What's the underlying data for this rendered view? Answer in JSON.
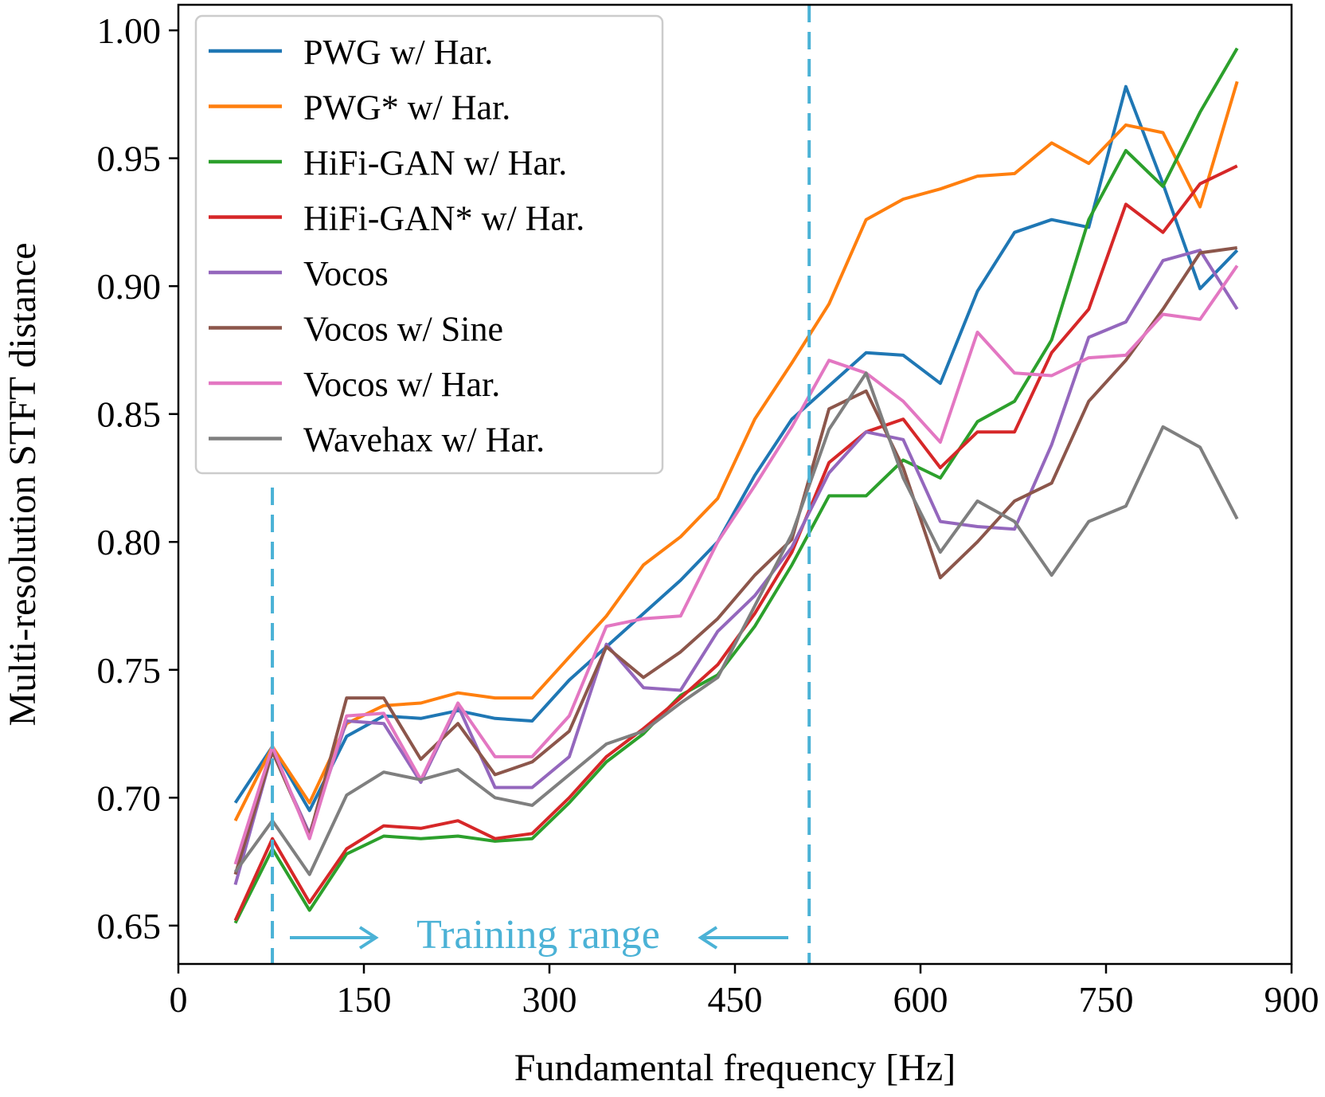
{
  "chart_data": {
    "type": "line",
    "xlabel": "Fundamental frequency [Hz]",
    "ylabel": "Multi-resolution STFT distance",
    "xlim": [
      0,
      900
    ],
    "ylim": [
      0.635,
      1.01
    ],
    "xticks": [
      "0",
      "150",
      "300",
      "450",
      "600",
      "750",
      "900"
    ],
    "xtick_values": [
      0,
      150,
      300,
      450,
      600,
      750,
      900
    ],
    "yticks": [
      "0.65",
      "0.70",
      "0.75",
      "0.80",
      "0.85",
      "0.90",
      "0.95",
      "1.00"
    ],
    "ytick_values": [
      0.65,
      0.7,
      0.75,
      0.8,
      0.85,
      0.9,
      0.95,
      1.0
    ],
    "legend_position": "top-left",
    "x": [
      46,
      76,
      106,
      136,
      166,
      196,
      226,
      256,
      286,
      316,
      346,
      376,
      406,
      436,
      466,
      496,
      526,
      556,
      586,
      616,
      646,
      676,
      706,
      736,
      766,
      796,
      826,
      856
    ],
    "series": [
      {
        "name": "PWG w/ Har.",
        "color": "#1f77b4",
        "values": [
          0.698,
          0.72,
          0.695,
          0.724,
          0.732,
          0.731,
          0.734,
          0.731,
          0.73,
          0.746,
          0.759,
          0.772,
          0.785,
          0.8,
          0.826,
          0.848,
          0.861,
          0.874,
          0.873,
          0.862,
          0.898,
          0.921,
          0.926,
          0.923,
          0.978,
          0.94,
          0.899,
          0.914
        ]
      },
      {
        "name": "PWG* w/ Har.",
        "color": "#ff7f0e",
        "values": [
          0.691,
          0.72,
          0.698,
          0.729,
          0.736,
          0.737,
          0.741,
          0.739,
          0.739,
          0.755,
          0.771,
          0.791,
          0.802,
          0.817,
          0.848,
          0.87,
          0.893,
          0.926,
          0.934,
          0.938,
          0.943,
          0.944,
          0.956,
          0.948,
          0.963,
          0.96,
          0.931,
          0.98
        ]
      },
      {
        "name": "HiFi-GAN w/ Har.",
        "color": "#2ca02c",
        "values": [
          0.651,
          0.68,
          0.656,
          0.678,
          0.685,
          0.684,
          0.685,
          0.683,
          0.684,
          0.698,
          0.714,
          0.725,
          0.74,
          0.748,
          0.767,
          0.791,
          0.818,
          0.818,
          0.832,
          0.825,
          0.847,
          0.855,
          0.879,
          0.926,
          0.953,
          0.939,
          0.968,
          0.993
        ]
      },
      {
        "name": "HiFi-GAN* w/ Har.",
        "color": "#d62728",
        "values": [
          0.652,
          0.684,
          0.659,
          0.68,
          0.689,
          0.688,
          0.691,
          0.684,
          0.686,
          0.7,
          0.716,
          0.727,
          0.739,
          0.752,
          0.772,
          0.796,
          0.831,
          0.843,
          0.848,
          0.829,
          0.843,
          0.843,
          0.874,
          0.891,
          0.932,
          0.921,
          0.94,
          0.947
        ]
      },
      {
        "name": "Vocos",
        "color": "#9467bd",
        "values": [
          0.666,
          0.718,
          0.686,
          0.73,
          0.729,
          0.706,
          0.736,
          0.704,
          0.704,
          0.716,
          0.76,
          0.743,
          0.742,
          0.765,
          0.779,
          0.798,
          0.827,
          0.843,
          0.84,
          0.808,
          0.806,
          0.805,
          0.838,
          0.88,
          0.886,
          0.91,
          0.914,
          0.891
        ]
      },
      {
        "name": "Vocos w/ Sine",
        "color": "#8c564b",
        "values": [
          0.67,
          0.718,
          0.685,
          0.739,
          0.739,
          0.715,
          0.729,
          0.709,
          0.714,
          0.726,
          0.759,
          0.747,
          0.757,
          0.77,
          0.787,
          0.801,
          0.852,
          0.859,
          0.829,
          0.786,
          0.8,
          0.816,
          0.823,
          0.855,
          0.871,
          0.891,
          0.913,
          0.915
        ]
      },
      {
        "name": "Vocos w/ Har.",
        "color": "#e377c2",
        "values": [
          0.674,
          0.72,
          0.684,
          0.732,
          0.733,
          0.707,
          0.737,
          0.716,
          0.716,
          0.732,
          0.767,
          0.77,
          0.771,
          0.8,
          0.822,
          0.845,
          0.871,
          0.866,
          0.855,
          0.839,
          0.882,
          0.866,
          0.865,
          0.872,
          0.873,
          0.889,
          0.887,
          0.908
        ]
      },
      {
        "name": "Wavehax w/ Har.",
        "color": "#7f7f7f",
        "values": [
          0.671,
          0.691,
          0.67,
          0.701,
          0.71,
          0.707,
          0.711,
          0.7,
          0.697,
          0.709,
          0.721,
          0.726,
          0.737,
          0.747,
          0.775,
          0.803,
          0.844,
          0.866,
          0.825,
          0.796,
          0.816,
          0.808,
          0.787,
          0.808,
          0.814,
          0.845,
          0.837,
          0.809
        ]
      }
    ],
    "annotations": {
      "training_range_text": "Training range",
      "training_range_start": 76,
      "training_range_end": 510,
      "color": "#4bb2d6"
    }
  }
}
